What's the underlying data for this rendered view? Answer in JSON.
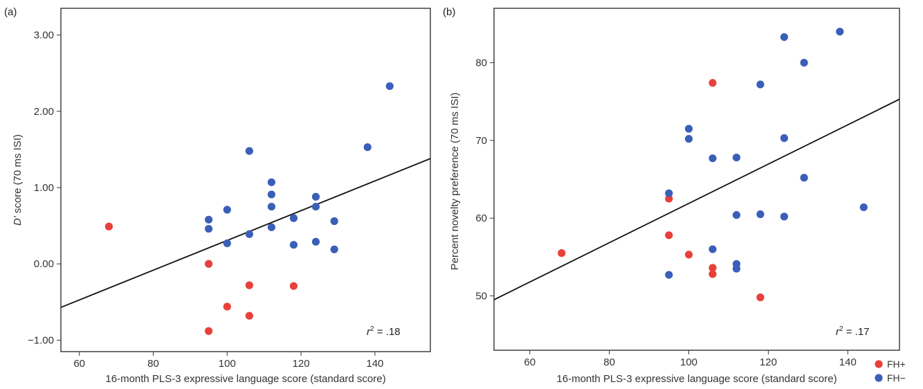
{
  "chart_data": [
    {
      "type": "scatter",
      "panel": "(a)",
      "xlabel": "16-month PLS-3 expressive language score (standard score)",
      "ylabel_italic": "D'",
      "ylabel_rest": " score (70 ms ISI)",
      "xlim": [
        55,
        155
      ],
      "ylim": [
        -1.15,
        3.35
      ],
      "xticks": [
        60,
        80,
        100,
        120,
        140
      ],
      "xtick_labels": [
        "60",
        "80",
        "100",
        "120",
        "140"
      ],
      "yticks": [
        -1,
        0,
        1,
        2,
        3
      ],
      "ytick_labels": [
        "−1.00",
        "0.00",
        "1.00",
        "2.00",
        "3.00"
      ],
      "annotation_r": "r",
      "annotation_sup": "2",
      "annotation_rest": " = .18",
      "fit_line": [
        [
          55,
          -0.57
        ],
        [
          155,
          1.38
        ]
      ],
      "series": [
        {
          "name": "FH+",
          "color": "#e8403a",
          "points": [
            [
              68,
              0.49
            ],
            [
              95,
              0.0
            ],
            [
              95,
              -0.88
            ],
            [
              100,
              -0.56
            ],
            [
              106,
              -0.28
            ],
            [
              106,
              -0.68
            ],
            [
              118,
              -0.29
            ]
          ]
        },
        {
          "name": "FH−",
          "color": "#3b5fb8",
          "points": [
            [
              95,
              0.58
            ],
            [
              95,
              0.46
            ],
            [
              100,
              0.71
            ],
            [
              100,
              0.27
            ],
            [
              106,
              1.48
            ],
            [
              106,
              0.39
            ],
            [
              112,
              1.07
            ],
            [
              112,
              0.91
            ],
            [
              112,
              0.75
            ],
            [
              112,
              0.48
            ],
            [
              118,
              0.6
            ],
            [
              118,
              0.25
            ],
            [
              124,
              0.88
            ],
            [
              124,
              0.75
            ],
            [
              124,
              0.29
            ],
            [
              129,
              0.56
            ],
            [
              129,
              0.19
            ],
            [
              138,
              1.53
            ],
            [
              144,
              2.33
            ]
          ]
        }
      ]
    },
    {
      "type": "scatter",
      "panel": "(b)",
      "xlabel": "16-month PLS-3 expressive language score (standard score)",
      "ylabel": "Percent novelty preference (70 ms ISI)",
      "xlim": [
        51,
        153
      ],
      "ylim": [
        43,
        87
      ],
      "xticks": [
        60,
        80,
        100,
        120,
        140
      ],
      "xtick_labels": [
        "60",
        "80",
        "100",
        "120",
        "140"
      ],
      "yticks": [
        50,
        60,
        70,
        80
      ],
      "ytick_labels": [
        "50",
        "60",
        "70",
        "80"
      ],
      "annotation_r": "r",
      "annotation_sup": "2",
      "annotation_rest": " = .17",
      "fit_line": [
        [
          51,
          49.5
        ],
        [
          153,
          75.3
        ]
      ],
      "series": [
        {
          "name": "FH+",
          "color": "#e8403a",
          "points": [
            [
              68,
              55.5
            ],
            [
              95,
              62.5
            ],
            [
              95,
              57.8
            ],
            [
              100,
              55.3
            ],
            [
              106,
              77.4
            ],
            [
              106,
              53.6
            ],
            [
              106,
              52.8
            ],
            [
              118,
              49.8
            ]
          ]
        },
        {
          "name": "FH−",
          "color": "#3b5fb8",
          "points": [
            [
              95,
              63.2
            ],
            [
              95,
              52.7
            ],
            [
              100,
              71.5
            ],
            [
              100,
              70.2
            ],
            [
              106,
              67.7
            ],
            [
              106,
              56.0
            ],
            [
              112,
              67.8
            ],
            [
              112,
              60.4
            ],
            [
              112,
              54.1
            ],
            [
              112,
              53.5
            ],
            [
              118,
              77.2
            ],
            [
              118,
              60.5
            ],
            [
              124,
              83.3
            ],
            [
              124,
              70.3
            ],
            [
              124,
              60.2
            ],
            [
              129,
              80.0
            ],
            [
              129,
              65.2
            ],
            [
              138,
              84.0
            ],
            [
              144,
              61.4
            ]
          ]
        }
      ]
    }
  ],
  "legend": [
    {
      "label": "FH+",
      "color": "#e8403a"
    },
    {
      "label": "FH−",
      "color": "#3b5fb8"
    }
  ]
}
